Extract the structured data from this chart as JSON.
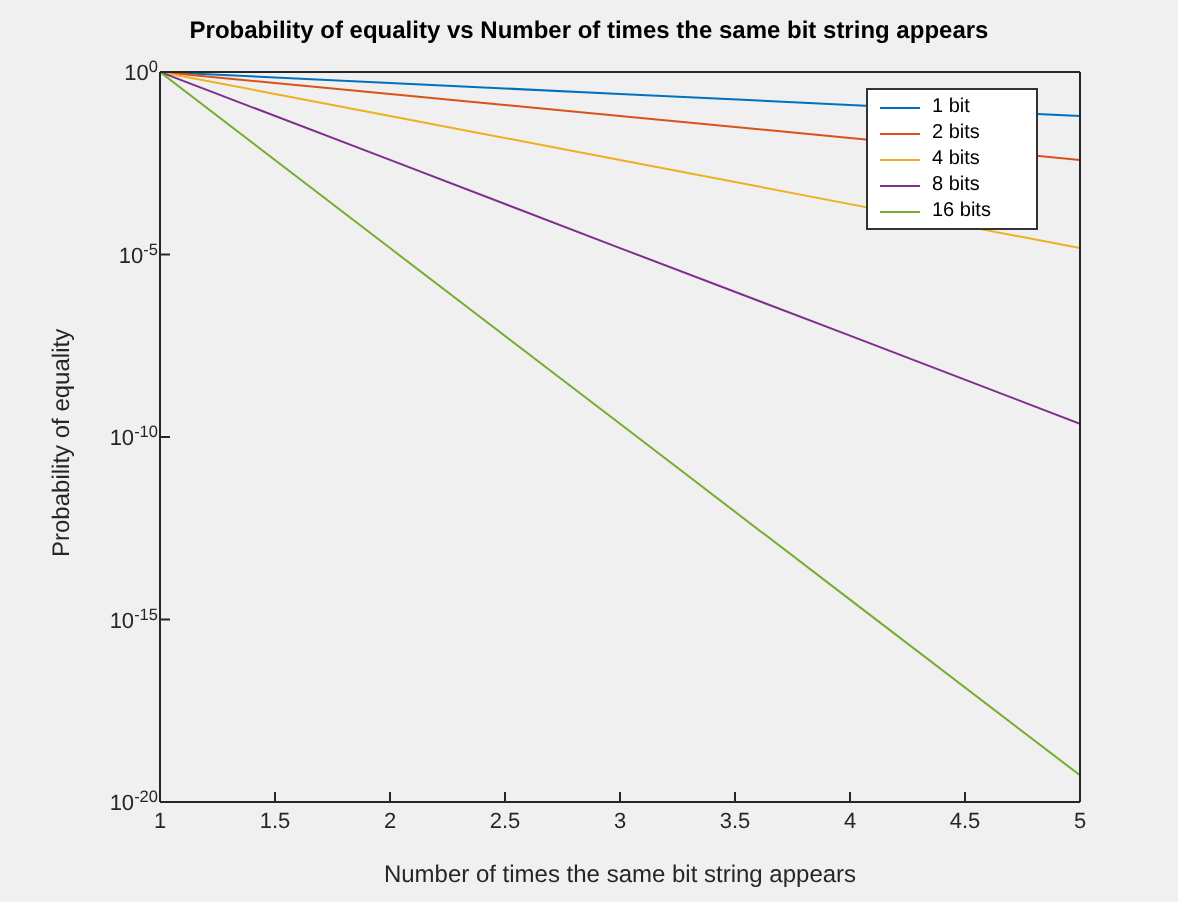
{
  "chart_data": {
    "type": "line",
    "title": "Probability of equality vs Number of times the same bit string appears",
    "xlabel": "Number of times the same bit string appears",
    "ylabel": "Probability of equality",
    "x": [
      1,
      2,
      3,
      4,
      5
    ],
    "series": [
      {
        "name": "1 bit",
        "color": "#0072bd",
        "values": [
          1,
          0.5,
          0.25,
          0.125,
          0.0625
        ]
      },
      {
        "name": "2 bits",
        "color": "#d95319",
        "values": [
          1,
          0.25,
          0.0625,
          0.015625,
          0.0039
        ]
      },
      {
        "name": "4 bits",
        "color": "#edb120",
        "values": [
          1,
          0.0625,
          0.0039,
          0.00024,
          1.5e-05
        ]
      },
      {
        "name": "8 bits",
        "color": "#7e2f8e",
        "values": [
          1,
          0.0039,
          1.5e-05,
          6e-08,
          2.3e-10
        ]
      },
      {
        "name": "16 bits",
        "color": "#77ac30",
        "values": [
          1,
          1.5e-05,
          2.3e-10,
          3.5e-15,
          5.4e-20
        ]
      }
    ],
    "log": "y",
    "xlim": [
      1,
      5
    ],
    "xticks": [
      1,
      1.5,
      2,
      2.5,
      3,
      3.5,
      4,
      4.5,
      5
    ],
    "ylim": [
      1e-20,
      1
    ],
    "yticks": [
      {
        "value": 1e-20,
        "label": "10$^{-20}$"
      },
      {
        "value": 1e-15,
        "label": "10$^{-15}$"
      },
      {
        "value": 1e-10,
        "label": "10$^{-10}$"
      },
      {
        "value": 1e-05,
        "label": "10$^{-5}$"
      },
      {
        "value": 1,
        "label": "10$^{0}$"
      }
    ],
    "grid": false,
    "legend": "top right",
    "marker": "none",
    "line_style": "solid"
  }
}
